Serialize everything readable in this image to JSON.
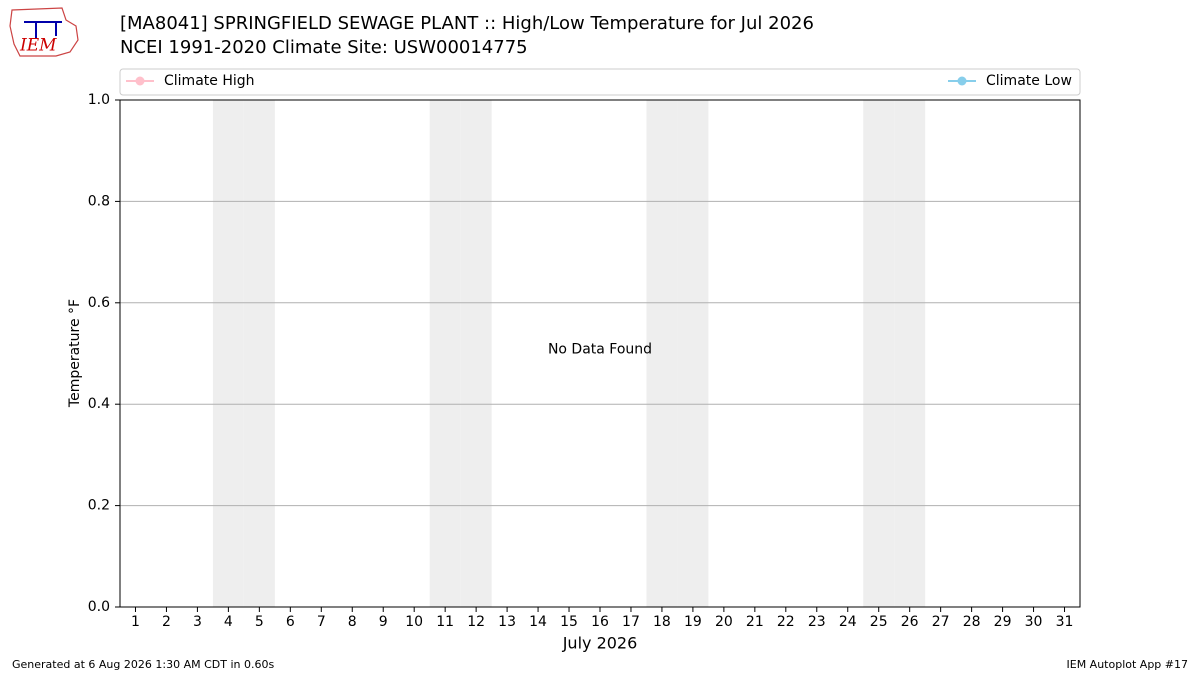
{
  "logo": "IEM",
  "footer": {
    "left": "Generated at 6 Aug 2026 1:30 AM CDT in 0.60s",
    "right": "IEM Autoplot App #17"
  },
  "chart_data": {
    "type": "line",
    "title": "[MA8041] SPRINGFIELD SEWAGE PLANT :: High/Low Temperature for Jul 2026",
    "subtitle": "NCEI 1991-2020 Climate Site: USW00014775",
    "ylabel": "Temperature °F",
    "xlabel": "July 2026",
    "annotation": "No Data Found",
    "x": [
      1,
      2,
      3,
      4,
      5,
      6,
      7,
      8,
      9,
      10,
      11,
      12,
      13,
      14,
      15,
      16,
      17,
      18,
      19,
      20,
      21,
      22,
      23,
      24,
      25,
      26,
      27,
      28,
      29,
      30,
      31
    ],
    "series": [
      {
        "name": "Climate High",
        "color": "#ffc0cb",
        "values": [
          null,
          null,
          null,
          null,
          null,
          null,
          null,
          null,
          null,
          null,
          null,
          null,
          null,
          null,
          null,
          null,
          null,
          null,
          null,
          null,
          null,
          null,
          null,
          null,
          null,
          null,
          null,
          null,
          null,
          null,
          null
        ]
      },
      {
        "name": "Climate Low",
        "color": "#87ceeb",
        "values": [
          null,
          null,
          null,
          null,
          null,
          null,
          null,
          null,
          null,
          null,
          null,
          null,
          null,
          null,
          null,
          null,
          null,
          null,
          null,
          null,
          null,
          null,
          null,
          null,
          null,
          null,
          null,
          null,
          null,
          null,
          null
        ]
      }
    ],
    "shaded_days": [
      4,
      5,
      11,
      12,
      18,
      19,
      25,
      26
    ],
    "shade_color": "#eeeeee",
    "xlim": [
      0.5,
      31.5
    ],
    "ylim": [
      0,
      1
    ],
    "yticks": [
      {
        "value": 0,
        "label": "0.0"
      },
      0.2,
      0.4,
      0.6,
      0.8,
      {
        "value": 1,
        "label": "1.0"
      }
    ],
    "grid": true,
    "legend": "top"
  }
}
